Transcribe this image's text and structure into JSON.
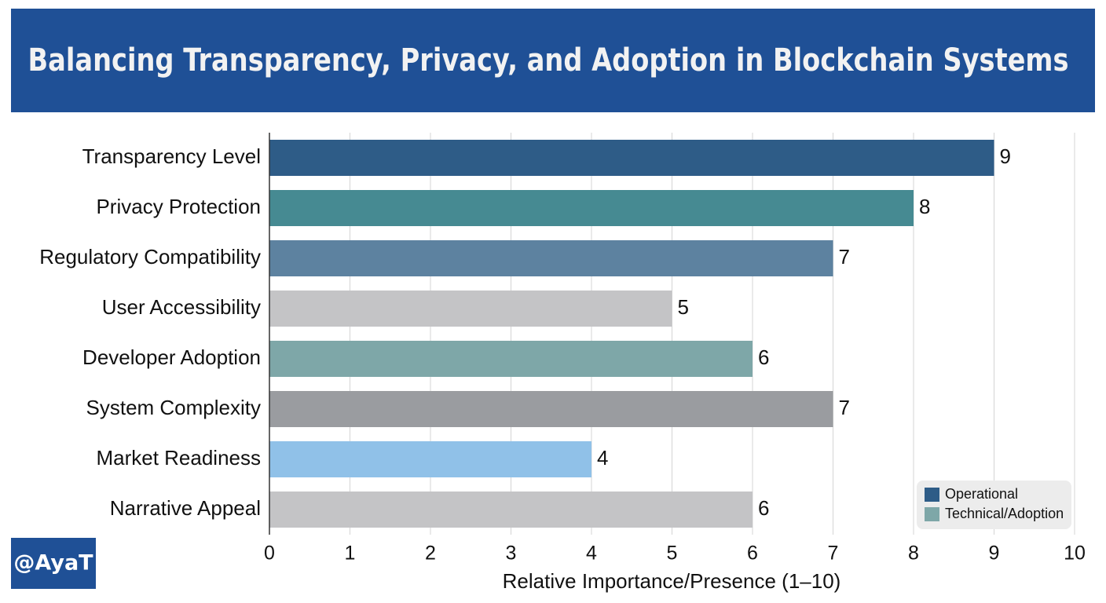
{
  "chart_data": {
    "type": "bar",
    "orientation": "horizontal",
    "title": "Balancing Transparency, Privacy, and Adoption in Blockchain Systems",
    "categories": [
      "Transparency Level",
      "Privacy Protection",
      "Regulatory Compatibility",
      "User Accessibility",
      "Developer Adoption",
      "System Complexity",
      "Market Readiness",
      "Narrative Appeal"
    ],
    "values": [
      9,
      8,
      7,
      5,
      6,
      7,
      4,
      6
    ],
    "colors": [
      "#2e5c87",
      "#468a92",
      "#5d82a0",
      "#c4c4c6",
      "#7ea7a8",
      "#9a9ca0",
      "#90c1e8",
      "#c4c4c6"
    ],
    "xlim": [
      0,
      10
    ],
    "xticks": [
      0,
      1,
      2,
      3,
      4,
      5,
      6,
      7,
      8,
      9,
      10
    ],
    "xlabel": "Relative Importance/Presence (1–10)",
    "grid": true,
    "legend": {
      "position": "lower right",
      "entries": [
        {
          "name": "Operational",
          "color": "#2e5c87"
        },
        {
          "name": "Technical/Adoption",
          "color": "#7ea7a8"
        }
      ]
    },
    "watermark": "@AyaT"
  }
}
